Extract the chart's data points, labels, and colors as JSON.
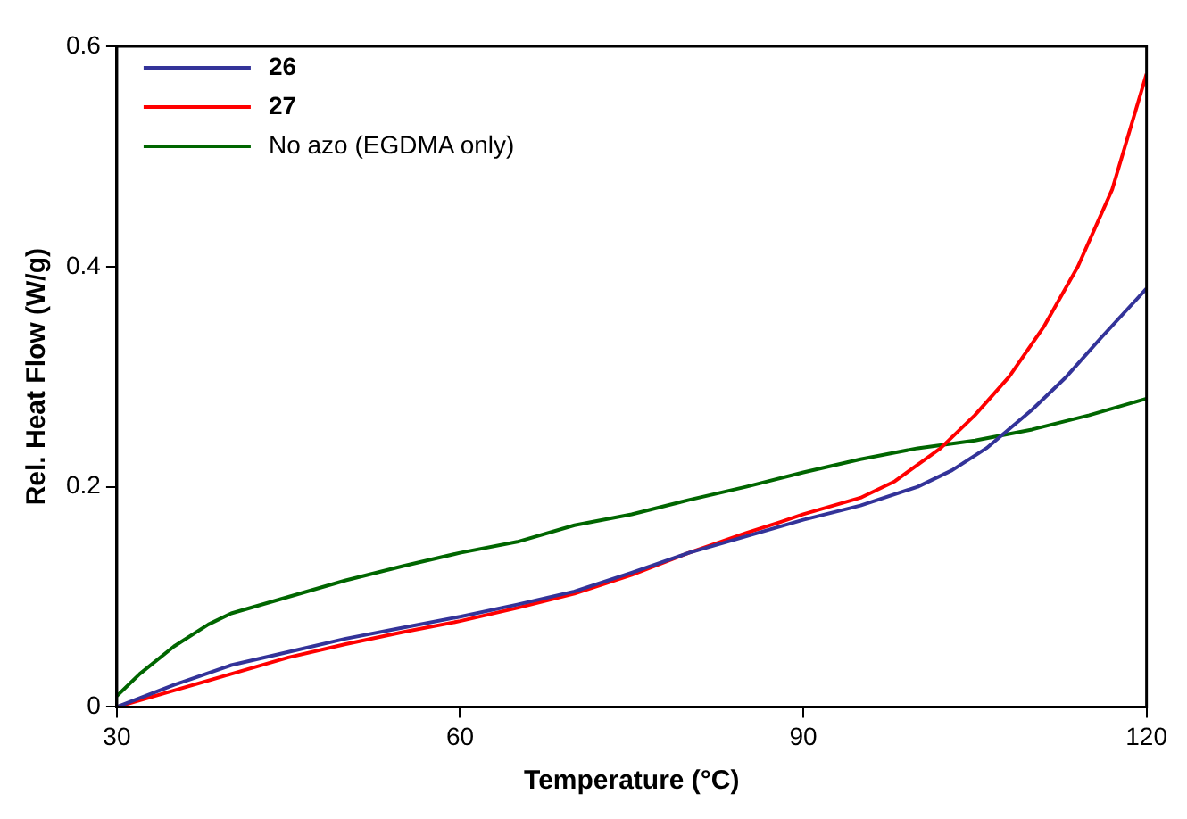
{
  "chart_data": {
    "type": "line",
    "xlabel": "Temperature (°C)",
    "ylabel": "Rel. Heat Flow (W/g)",
    "xlim": [
      30,
      120
    ],
    "xticks": [
      30,
      60,
      90,
      120
    ],
    "ylim": [
      0,
      0.6
    ],
    "yticks": [
      0,
      0.2,
      0.4,
      0.6
    ],
    "grid": false,
    "legend": "top left",
    "marker": "none",
    "line_style": "solid",
    "series": [
      {
        "name": "26",
        "color": "#333399",
        "x": [
          30,
          35,
          40,
          45,
          50,
          55,
          60,
          65,
          70,
          75,
          80,
          85,
          90,
          95,
          100,
          103,
          106,
          110,
          113,
          116,
          120
        ],
        "values": [
          0,
          0.02,
          0.038,
          0.05,
          0.062,
          0.072,
          0.082,
          0.093,
          0.105,
          0.122,
          0.14,
          0.155,
          0.17,
          0.183,
          0.2,
          0.215,
          0.235,
          0.27,
          0.3,
          0.335,
          0.38
        ]
      },
      {
        "name": "27",
        "color": "#ff0000",
        "x": [
          30,
          35,
          40,
          45,
          50,
          55,
          60,
          65,
          70,
          75,
          80,
          85,
          88,
          90,
          95,
          98,
          100,
          102,
          105,
          108,
          111,
          114,
          117,
          120
        ],
        "values": [
          0,
          0.015,
          0.03,
          0.045,
          0.057,
          0.068,
          0.078,
          0.09,
          0.103,
          0.12,
          0.14,
          0.158,
          0.168,
          0.175,
          0.19,
          0.205,
          0.22,
          0.235,
          0.265,
          0.3,
          0.345,
          0.4,
          0.47,
          0.575
        ]
      },
      {
        "name": "No azo (EGDMA only)",
        "color": "#006600",
        "x": [
          30,
          32,
          35,
          38,
          40,
          45,
          50,
          55,
          60,
          65,
          70,
          75,
          80,
          85,
          90,
          95,
          100,
          105,
          110,
          115,
          120
        ],
        "values": [
          0.01,
          0.03,
          0.055,
          0.075,
          0.085,
          0.1,
          0.115,
          0.128,
          0.14,
          0.15,
          0.165,
          0.175,
          0.188,
          0.2,
          0.213,
          0.225,
          0.235,
          0.242,
          0.252,
          0.265,
          0.28
        ]
      }
    ]
  }
}
